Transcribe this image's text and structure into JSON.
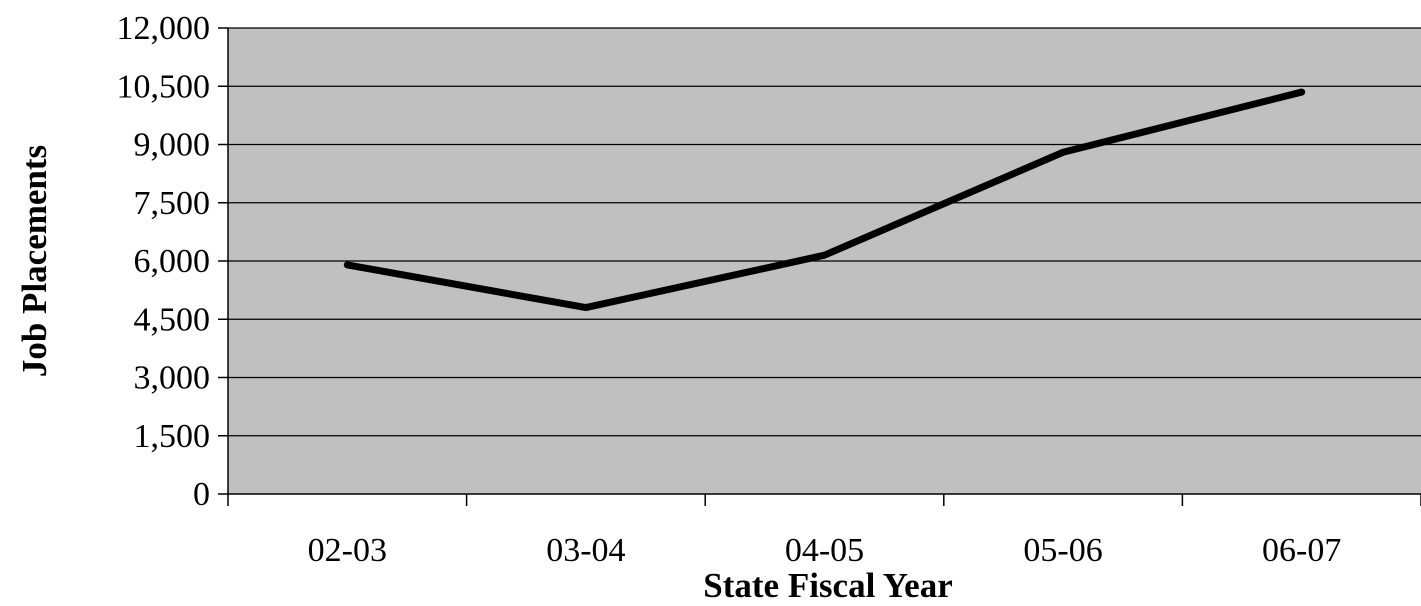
{
  "chart_data": {
    "type": "line",
    "title": "",
    "xlabel": "State Fiscal Year",
    "ylabel": "Job Placements",
    "categories": [
      "02-03",
      "03-04",
      "04-05",
      "05-06",
      "06-07"
    ],
    "series": [
      {
        "values": [
          5900,
          4800,
          6150,
          8800,
          10350
        ]
      }
    ],
    "ylim": [
      0,
      12000
    ],
    "yticks": [
      "0",
      "1,500",
      "3,000",
      "4,500",
      "6,000",
      "7,500",
      "9,000",
      "10,500",
      "12,000"
    ],
    "ytick_values": [
      0,
      1500,
      3000,
      4500,
      6000,
      7500,
      9000,
      10500,
      12000
    ],
    "grid": true,
    "legend": "none",
    "colors": {
      "plot_background": "#c0c0c0",
      "line": "#000000",
      "gridline": "#000000"
    }
  }
}
